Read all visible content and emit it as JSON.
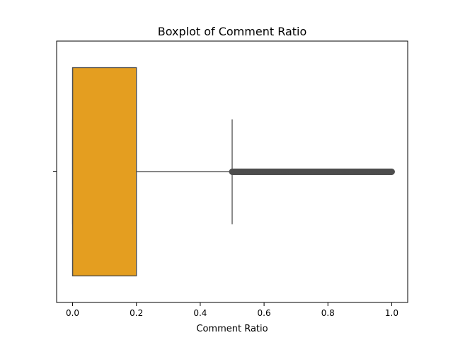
{
  "chart_data": {
    "type": "boxplot",
    "orientation": "horizontal",
    "title": "Boxplot of Comment Ratio",
    "xlabel": "Comment Ratio",
    "ylabel": "",
    "xlim": [
      -0.05,
      1.05
    ],
    "xticks": [
      0.0,
      0.2,
      0.4,
      0.6,
      0.8,
      1.0
    ],
    "xtick_labels": [
      "0.0",
      "0.2",
      "0.4",
      "0.6",
      "0.8",
      "1.0"
    ],
    "grid": false,
    "box": {
      "whisker_low": 0.0,
      "q1": 0.0,
      "median": 0.0,
      "q3": 0.2,
      "whisker_high": 0.5
    },
    "outliers_range": [
      0.5,
      1.0
    ],
    "box_color": "#e49e20",
    "line_color": "#4d4d4d"
  }
}
